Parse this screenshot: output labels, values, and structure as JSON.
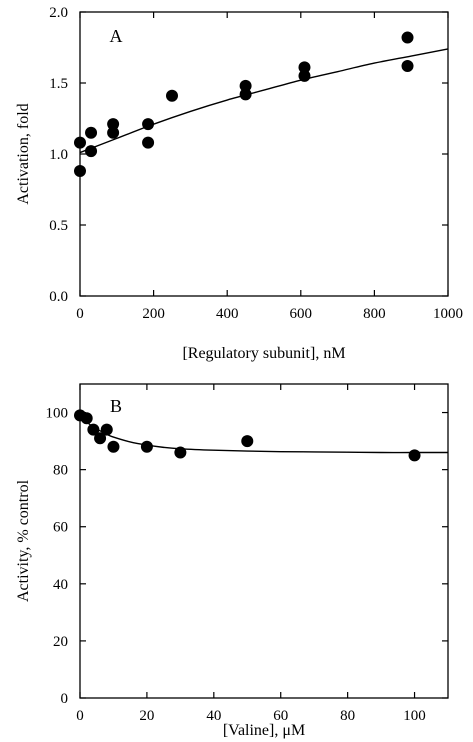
{
  "chart_data": [
    {
      "type": "scatter",
      "panel_label": "A",
      "xlabel": "[Regulatory subunit], nM",
      "ylabel": "Activation, fold",
      "xlim": [
        0,
        1000
      ],
      "ylim": [
        0.0,
        2.0
      ],
      "xticks": [
        "0",
        "200",
        "400",
        "600",
        "800",
        "1000"
      ],
      "yticks": [
        "0.0",
        "0.5",
        "1.0",
        "1.5",
        "2.0"
      ],
      "grid": false,
      "points": {
        "x": [
          0,
          0,
          30,
          30,
          90,
          90,
          185,
          185,
          250,
          450,
          450,
          610,
          610,
          890,
          890
        ],
        "y": [
          1.08,
          0.88,
          1.15,
          1.02,
          1.21,
          1.15,
          1.21,
          1.08,
          1.41,
          1.48,
          1.42,
          1.61,
          1.55,
          1.82,
          1.62
        ]
      },
      "fit_curve": {
        "x": [
          0,
          100,
          200,
          300,
          400,
          500,
          600,
          700,
          800,
          900,
          1000
        ],
        "y": [
          1.01,
          1.11,
          1.21,
          1.3,
          1.38,
          1.45,
          1.52,
          1.58,
          1.64,
          1.69,
          1.74
        ]
      },
      "marker_color": "#000000",
      "line_color": "#000000"
    },
    {
      "type": "scatter",
      "panel_label": "B",
      "xlabel": "[Valine], μM",
      "ylabel": "Activity, % control",
      "xlim": [
        0,
        110
      ],
      "ylim": [
        0,
        110
      ],
      "xticks": [
        "0",
        "20",
        "40",
        "60",
        "80",
        "100"
      ],
      "yticks": [
        "0",
        "20",
        "40",
        "60",
        "80",
        "100"
      ],
      "grid": false,
      "points": {
        "x": [
          0,
          2,
          4,
          6,
          8,
          10,
          20,
          30,
          50,
          100
        ],
        "y": [
          99,
          98,
          94,
          91,
          94,
          88,
          88,
          86,
          90,
          85
        ]
      },
      "fit_curve": {
        "x": [
          0,
          2,
          4,
          6,
          8,
          10,
          15,
          20,
          25,
          30,
          40,
          50,
          60,
          70,
          80,
          90,
          100,
          110
        ],
        "y": [
          98.5,
          96.6,
          95.0,
          93.6,
          92.4,
          91.4,
          89.7,
          88.6,
          87.8,
          87.3,
          86.8,
          86.5,
          86.3,
          86.2,
          86.1,
          86.0,
          86.0,
          86.0
        ]
      },
      "marker_color": "#000000",
      "line_color": "#000000"
    }
  ]
}
